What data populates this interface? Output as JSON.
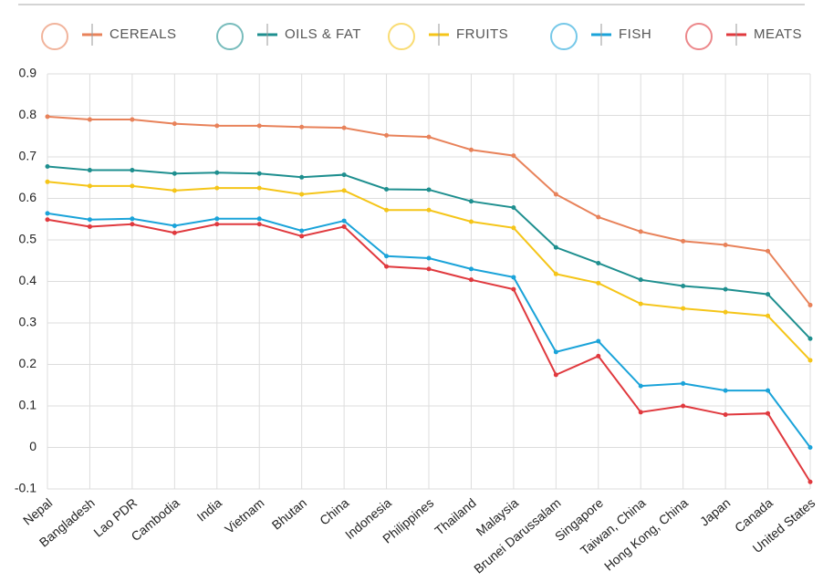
{
  "chart_data": {
    "type": "line",
    "categories": [
      "Nepal",
      "Bangladesh",
      "Lao PDR",
      "Cambodia",
      "India",
      "Vietnam",
      "Bhutan",
      "China",
      "Indonesia",
      "Philippines",
      "Thailand",
      "Malaysia",
      "Brunei Darussalam",
      "Singapore",
      "Taiwan, China",
      "Hong Kong, China",
      "Japan",
      "Canada",
      "United States"
    ],
    "series": [
      {
        "name": "CEREALS",
        "color": "#e8825a",
        "values": [
          0.797,
          0.79,
          0.79,
          0.78,
          0.775,
          0.775,
          0.772,
          0.77,
          0.752,
          0.748,
          0.717,
          0.703,
          0.61,
          0.555,
          0.52,
          0.497,
          0.488,
          0.473,
          0.343
        ]
      },
      {
        "name": "OILS & FAT",
        "color": "#1e8f8f",
        "values": [
          0.677,
          0.668,
          0.668,
          0.66,
          0.662,
          0.66,
          0.651,
          0.657,
          0.622,
          0.621,
          0.593,
          0.578,
          0.482,
          0.444,
          0.404,
          0.389,
          0.381,
          0.369,
          0.262
        ]
      },
      {
        "name": "FRUITS",
        "color": "#f5c518",
        "values": [
          0.64,
          0.63,
          0.63,
          0.619,
          0.625,
          0.625,
          0.61,
          0.619,
          0.572,
          0.572,
          0.544,
          0.529,
          0.418,
          0.396,
          0.346,
          0.335,
          0.326,
          0.317,
          0.21
        ]
      },
      {
        "name": "FISH",
        "color": "#1aa3d9",
        "values": [
          0.564,
          0.549,
          0.551,
          0.534,
          0.551,
          0.551,
          0.522,
          0.546,
          0.461,
          0.456,
          0.43,
          0.41,
          0.23,
          0.256,
          0.148,
          0.154,
          0.137,
          0.137,
          0.0
        ]
      },
      {
        "name": "MEATS",
        "color": "#e0393e",
        "values": [
          0.549,
          0.532,
          0.538,
          0.517,
          0.538,
          0.538,
          0.509,
          0.532,
          0.436,
          0.43,
          0.404,
          0.381,
          0.175,
          0.22,
          0.085,
          0.1,
          0.079,
          0.082,
          -0.083
        ]
      }
    ],
    "ylim": [
      -0.1,
      0.9
    ],
    "yticks": [
      -0.1,
      0,
      0.1,
      0.2,
      0.3,
      0.4,
      0.5,
      0.6,
      0.7,
      0.8,
      0.9
    ],
    "grid": true
  }
}
